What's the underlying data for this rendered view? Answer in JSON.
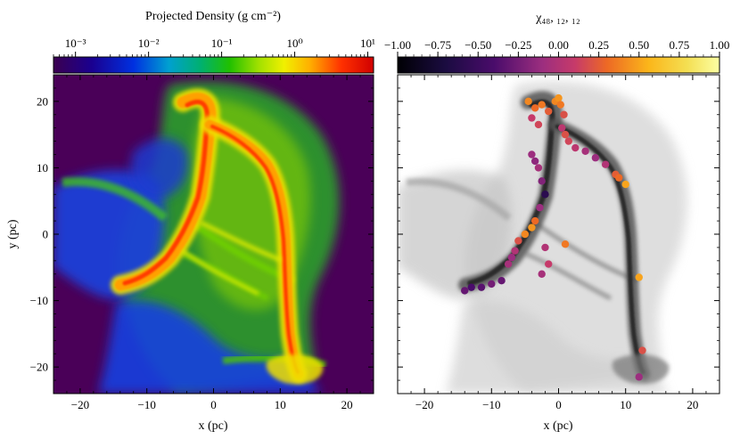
{
  "chart_data": [
    {
      "type": "heatmap",
      "panel": "left",
      "colormap": "nipy_spectral",
      "colorbar": {
        "title": "Projected Density  (g cm⁻²)",
        "scale": "log",
        "range": [
          0.0005,
          12
        ],
        "tick_values": [
          0.001,
          0.01,
          0.1,
          1,
          10
        ],
        "tick_labels": [
          "10⁻³",
          "10⁻²",
          "10⁻¹",
          "10⁰",
          "10¹"
        ]
      },
      "xlabel": "x (pc)",
      "ylabel": "y (pc)",
      "xlim": [
        -24,
        24
      ],
      "ylim": [
        -24,
        24
      ],
      "x_ticks": [
        -20,
        -10,
        0,
        10,
        20
      ],
      "x_tick_labels": [
        "−20",
        "−10",
        "0",
        "10",
        "20"
      ],
      "y_ticks": [
        -20,
        -10,
        0,
        10,
        20
      ],
      "y_tick_labels": [
        "−20",
        "−10",
        "0",
        "10",
        "20"
      ],
      "filaments": [
        {
          "points": [
            [
              -5,
              20.5
            ],
            [
              -1.5,
              21.5
            ],
            [
              0,
              17
            ],
            [
              1,
              11
            ],
            [
              -1,
              4
            ],
            [
              -3.5,
              -2
            ],
            [
              -7,
              -6.5
            ],
            [
              -13,
              -7.5
            ]
          ],
          "density": 3
        },
        {
          "points": [
            [
              0,
              17
            ],
            [
              3.5,
              12
            ],
            [
              6.5,
              7
            ],
            [
              8.5,
              0
            ],
            [
              9.5,
              -8
            ],
            [
              10.5,
              -15
            ],
            [
              11.5,
              -21
            ]
          ],
          "density": 3
        },
        {
          "points": [
            [
              -5,
              5
            ],
            [
              0,
              0
            ],
            [
              5,
              -4
            ],
            [
              9,
              -7
            ]
          ],
          "density": 0.5
        },
        {
          "points": [
            [
              -4,
              -2
            ],
            [
              1,
              -5.5
            ],
            [
              6,
              -9
            ]
          ],
          "density": 0.4
        }
      ]
    },
    {
      "type": "scatter",
      "panel": "right",
      "colormap": "inferno",
      "colorbar": {
        "title": "χ₄₈, ₁₂, ₁₂",
        "scale": "linear",
        "range": [
          -1,
          1
        ],
        "tick_values": [
          -1,
          -0.75,
          -0.5,
          -0.25,
          0,
          0.25,
          0.5,
          0.75,
          1
        ],
        "tick_labels": [
          "−1.00",
          "−0.75",
          "−0.50",
          "−0.25",
          "0.00",
          "0.25",
          "0.50",
          "0.75",
          "1.00"
        ]
      },
      "xlabel": "x (pc)",
      "xlim": [
        -24,
        24
      ],
      "ylim": [
        -24,
        24
      ],
      "x_ticks": [
        -20,
        -10,
        0,
        10,
        20
      ],
      "x_tick_labels": [
        "−20",
        "−10",
        "0",
        "10",
        "20"
      ],
      "points": [
        {
          "x": -4.5,
          "y": 20.0,
          "value": 0.4
        },
        {
          "x": -3.5,
          "y": 19.0,
          "value": 0.3
        },
        {
          "x": -2.5,
          "y": 19.5,
          "value": 0.35
        },
        {
          "x": -1.5,
          "y": 18.5,
          "value": 0.25
        },
        {
          "x": -0.5,
          "y": 20.0,
          "value": 0.4
        },
        {
          "x": 0.0,
          "y": 20.5,
          "value": 0.45
        },
        {
          "x": 0.3,
          "y": 19.5,
          "value": 0.35
        },
        {
          "x": 0.8,
          "y": 18.0,
          "value": 0.2
        },
        {
          "x": -4.0,
          "y": 17.5,
          "value": 0.1
        },
        {
          "x": -3.0,
          "y": 16.5,
          "value": 0.15
        },
        {
          "x": 0.5,
          "y": 16.0,
          "value": 0.05
        },
        {
          "x": 1.0,
          "y": 15.0,
          "value": 0.2
        },
        {
          "x": 1.5,
          "y": 14.0,
          "value": 0.15
        },
        {
          "x": 2.5,
          "y": 13.0,
          "value": 0.05
        },
        {
          "x": 4.0,
          "y": 12.5,
          "value": -0.05
        },
        {
          "x": 5.5,
          "y": 11.5,
          "value": -0.1
        },
        {
          "x": 7.0,
          "y": 10.5,
          "value": 0.0
        },
        {
          "x": 8.5,
          "y": 9.0,
          "value": 0.25
        },
        {
          "x": 9.0,
          "y": 8.5,
          "value": 0.3
        },
        {
          "x": 10.0,
          "y": 7.5,
          "value": 0.5
        },
        {
          "x": -4.0,
          "y": 12.0,
          "value": -0.1
        },
        {
          "x": -3.5,
          "y": 11.0,
          "value": -0.15
        },
        {
          "x": -3.0,
          "y": 10.0,
          "value": -0.05
        },
        {
          "x": -2.5,
          "y": 8.0,
          "value": -0.2
        },
        {
          "x": -2.0,
          "y": 6.0,
          "value": -0.6
        },
        {
          "x": -2.8,
          "y": 4.0,
          "value": -0.1
        },
        {
          "x": -3.5,
          "y": 2.0,
          "value": 0.3
        },
        {
          "x": -4.0,
          "y": 1.0,
          "value": 0.45
        },
        {
          "x": -5.0,
          "y": 0.0,
          "value": 0.4
        },
        {
          "x": -6.0,
          "y": -1.0,
          "value": 0.2
        },
        {
          "x": -6.5,
          "y": -2.5,
          "value": 0.0
        },
        {
          "x": -7.0,
          "y": -3.5,
          "value": -0.1
        },
        {
          "x": -7.5,
          "y": -4.5,
          "value": -0.05
        },
        {
          "x": -2.0,
          "y": -2.0,
          "value": 0.0
        },
        {
          "x": -1.5,
          "y": -4.5,
          "value": 0.1
        },
        {
          "x": -2.5,
          "y": -6.0,
          "value": -0.05
        },
        {
          "x": -8.5,
          "y": -7.0,
          "value": -0.3
        },
        {
          "x": -10.0,
          "y": -7.5,
          "value": -0.25
        },
        {
          "x": -11.5,
          "y": -8.0,
          "value": -0.35
        },
        {
          "x": -13.0,
          "y": -8.0,
          "value": -0.4
        },
        {
          "x": -14.0,
          "y": -8.5,
          "value": -0.3
        },
        {
          "x": 12.0,
          "y": -6.5,
          "value": 0.5
        },
        {
          "x": 12.5,
          "y": -17.5,
          "value": 0.2
        },
        {
          "x": 12.0,
          "y": -21.5,
          "value": -0.1
        },
        {
          "x": 1.0,
          "y": -1.5,
          "value": 0.35
        }
      ]
    }
  ]
}
